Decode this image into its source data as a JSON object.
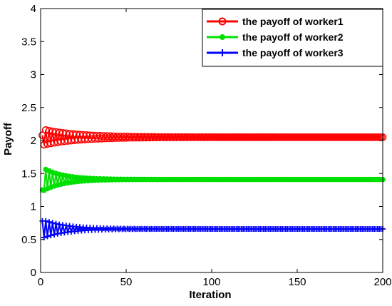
{
  "chart_data": {
    "type": "line",
    "xlabel": "Iteration",
    "ylabel": "Payoff",
    "xlim": [
      0,
      200
    ],
    "ylim": [
      0,
      4
    ],
    "xticks": [
      "0",
      "50",
      "100",
      "150",
      "200"
    ],
    "yticks": [
      "0",
      "0.5",
      "1",
      "1.5",
      "2",
      "2.5",
      "3",
      "3.5",
      "4"
    ],
    "legend_position": "top-right",
    "grid": false,
    "series": [
      {
        "name": "the payoff of worker1",
        "color": "#ff0000",
        "marker": "circle",
        "start": 2.08,
        "amplitude": 0.12,
        "decay": 20,
        "final": 2.05
      },
      {
        "name": "the payoff of worker2",
        "color": "#00e000",
        "marker": "dot",
        "start": 1.25,
        "amplitude": 0.18,
        "decay": 12,
        "final": 1.41
      },
      {
        "name": "the payoff of worker3",
        "color": "#0000ff",
        "marker": "plus",
        "start": 0.78,
        "amplitude": 0.14,
        "decay": 14,
        "final": 0.66
      }
    ]
  }
}
